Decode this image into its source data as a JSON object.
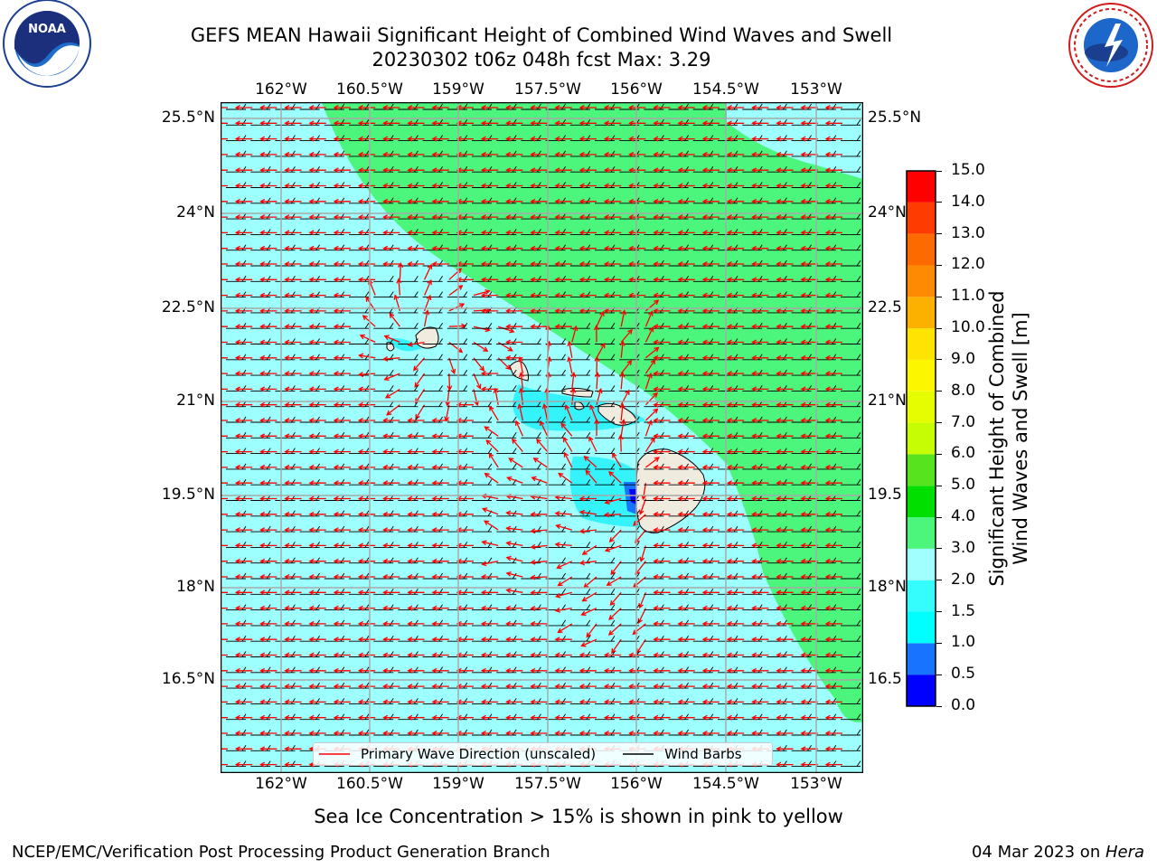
{
  "header": {
    "title_line1": "GEFS MEAN Hawaii Significant Height of Combined Wind Waves and Swell",
    "title_line2": "20230302 t06z 048h fcst   Max: 3.29"
  },
  "logos": {
    "left": "NOAA",
    "left_ring": "NATIONAL OCEANIC AND ATMOSPHERIC ADMINISTRATION · U.S. DEPARTMENT OF COMMERCE",
    "right_ring": "NATIONAL WEATHER SERVICE"
  },
  "map": {
    "lon_labels": [
      "162°W",
      "160.5°W",
      "159°W",
      "157.5°W",
      "156°W",
      "154.5°W",
      "153°W"
    ],
    "lat_labels": [
      "25.5°N",
      "24°N",
      "22.5°N",
      "21°N",
      "19.5°N",
      "18°N",
      "16.5°N"
    ],
    "lat_labels_right_visible": [
      "25.5°N",
      "24°N",
      "22.5",
      "21°N",
      "19.5",
      "18°N",
      "16.5"
    ],
    "colors": {
      "ocean_fill": "#9dfffe",
      "high_wave_fill": "#4cf57b",
      "low_wave_fill": "#34f3fb",
      "land": "#efebdf",
      "wave_direction": "#ff0000",
      "wind_barb": "#000000",
      "grid": "#a8a8a8"
    },
    "islands": [
      "Niihau",
      "Kauai",
      "Oahu",
      "Molokai",
      "Lanai",
      "Maui",
      "Kahoolawe",
      "Hawaii"
    ]
  },
  "legend": {
    "wave_label": "Primary Wave Direction (unscaled)",
    "barb_label": "Wind Barbs"
  },
  "colorbar": {
    "label_line1": "Significant Height of Combined",
    "label_line2": "Wind Waves and Swell [m]",
    "ticks": [
      "0.0",
      "0.5",
      "1.0",
      "1.5",
      "2.0",
      "3.0",
      "4.0",
      "5.0",
      "6.0",
      "7.0",
      "8.0",
      "9.0",
      "10.0",
      "11.0",
      "12.0",
      "13.0",
      "14.0",
      "15.0"
    ],
    "colors": [
      "#0000ff",
      "#1873fe",
      "#00ffff",
      "#35fcfd",
      "#a1fffe",
      "#4cf57b",
      "#00df00",
      "#57e31d",
      "#c6fc04",
      "#e6fc00",
      "#fcf700",
      "#fde403",
      "#fcb100",
      "#fd8a02",
      "#fd6b00",
      "#fe3c02",
      "#fe0000"
    ]
  },
  "footer": {
    "note": "Sea Ice Concentration > 15% is shown in pink to yellow",
    "left": "NCEP/EMC/Verification Post Processing Product Generation Branch",
    "right_prefix": "04 Mar 2023 on ",
    "right_host": "Hera"
  }
}
